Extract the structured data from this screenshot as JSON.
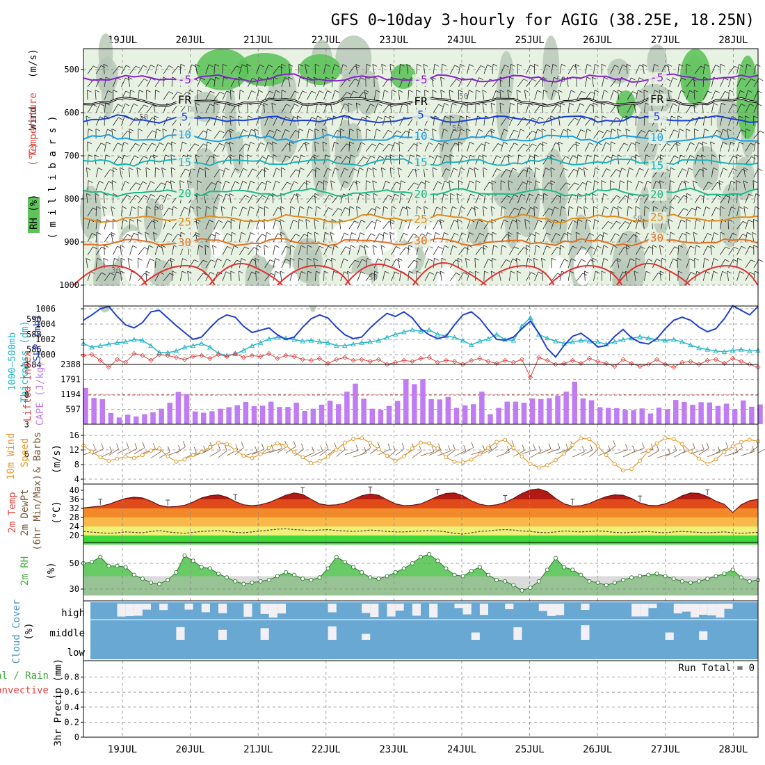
{
  "title": "GFS 0~10day 3-hourly for AGIG (38.25E, 18.25N)",
  "date_labels": [
    "19JUL",
    "20JUL",
    "21JUL",
    "22JUL",
    "23JUL",
    "24JUL",
    "25JUL",
    "26JUL",
    "27JUL",
    "28JUL"
  ],
  "colors": {
    "rh_fill_light": "#e8f2e3",
    "rh_fill_grey": "#b9c9b9",
    "rh_fill_green": "#5ec35a",
    "temp_minus5": "#8a1fd1",
    "temp_fr": "#000000",
    "temp_5": "#1a3fd6",
    "temp_10": "#1a9ee6",
    "temp_15": "#18b3b9",
    "temp_20": "#1db98a",
    "temp_25": "#e08c1a",
    "temp_30": "#e07020",
    "temp_35": "#e03030",
    "slp": "#1f3fd0",
    "thickness": "#27b6c8",
    "lifted_index": "#e0403c",
    "cape": "#c07cf2",
    "wind_speed": "#e49a2e",
    "barb": "#7a5a3a",
    "cloud_blue": "#6aa8d4",
    "cloud_white": "#f2f0f5",
    "rh2m_fill": "#4ec24a"
  },
  "panel_labels": {
    "upper": {
      "rh": "RH (%)",
      "temperature": "Temperature",
      "temp_unit": "(°C)",
      "wind": "Wind",
      "wind_unit": "(m/s)",
      "axis": "( m i l l i b a r s )"
    },
    "slp": {
      "thickness": "Thickness (dm)",
      "range": "1000–500mb",
      "slp": "SLP (mb)"
    },
    "cape": {
      "li": "Lifted Index",
      "cape": "CAPE (J/kg)"
    },
    "wind10": {
      "label1": "10m Wind",
      "label2": "Speed",
      "label3": "& Barbs",
      "unit": "(m/s)"
    },
    "temp2m": {
      "l1": "2m Temp",
      "l2": "2m DewPt",
      "l3": "(6hr Min/Max)",
      "unit": "(°C)"
    },
    "rh2m": {
      "label": "2m RH",
      "unit": "(%)"
    },
    "cloud": {
      "label": "Cloud Cover",
      "unit": "(%)",
      "levels": [
        "high",
        "middle",
        "low"
      ]
    },
    "precip": {
      "l1": "Total / Rain",
      "l2": "Convective",
      "axis": "3hr Precip (mm)",
      "run_total": "Run Total = 0"
    }
  },
  "chart_data": {
    "type": "line",
    "time_axis": {
      "start": "18 JUL 12Z",
      "steps": 80,
      "step_hours": 3
    },
    "upper_air": {
      "pressure_levels": [
        500,
        600,
        700,
        800,
        900,
        1000
      ],
      "isotherms": [
        {
          "label": "-5",
          "approx_mb": 520
        },
        {
          "label": "FR",
          "approx_mb": 575
        },
        {
          "label": "5",
          "approx_mb": 615
        },
        {
          "label": "10",
          "approx_mb": 660
        },
        {
          "label": "15",
          "approx_mb": 715
        },
        {
          "label": "20",
          "approx_mb": 785
        },
        {
          "label": "25",
          "approx_mb": 845
        },
        {
          "label": "30",
          "approx_mb": 900
        }
      ],
      "rh_labels": [
        "50",
        "50",
        "50",
        "50",
        "50",
        "50",
        "30",
        "30"
      ]
    },
    "slp": {
      "yticks": [
        1000,
        1002,
        1004,
        1006
      ],
      "values": [
        1004.5,
        1005.2,
        1006.0,
        1006.3,
        1005.0,
        1003.9,
        1003.5,
        1004.2,
        1005.6,
        1005.8,
        1004.8,
        1003.8,
        1002.9,
        1002.0,
        1002.3,
        1003.5,
        1004.6,
        1005.2,
        1004.9,
        1003.7,
        1002.9,
        1003.2,
        1003.5,
        1002.6,
        1002.0,
        1002.3,
        1003.6,
        1004.7,
        1005.2,
        1004.8,
        1003.6,
        1002.6,
        1002.1,
        1002.3,
        1003.5,
        1004.5,
        1005.4,
        1005.0,
        1005.6,
        1004.8,
        1003.4,
        1002.6,
        1002.1,
        1002.4,
        1003.9,
        1005.2,
        1005.6,
        1004.7,
        1003.3,
        1002.0,
        1001.9,
        1002.3,
        1003.4,
        1004.4,
        1002.8,
        1000.8,
        999.7,
        1001.2,
        1002.4,
        1002.8,
        1002.0,
        1001.0,
        1001.2,
        1002.4,
        1003.3,
        1002.2,
        1001.6,
        1001.4,
        1002.1,
        1003.4,
        1004.5,
        1004.9,
        1004.5,
        1003.6,
        1003.0,
        1003.4,
        1004.7,
        1006.4,
        1005.8,
        1005.2,
        1006.3
      ],
      "thickness_yticks": [
        584,
        586,
        588,
        590
      ],
      "thickness": [
        586.8,
        586.3,
        586.5,
        586.7,
        586.9,
        587.0,
        587.3,
        587.2,
        586.5,
        585.6,
        585.6,
        585.8,
        586.3,
        586.5,
        586.8,
        586.3,
        585.5,
        585.2,
        585.4,
        585.9,
        586.5,
        586.9,
        587.4,
        587.6,
        587.5,
        587.3,
        587.1,
        587.2,
        587.0,
        586.9,
        586.5,
        586.5,
        586.7,
        586.9,
        587.0,
        587.2,
        587.6,
        588.0,
        588.3,
        588.6,
        588.4,
        588.6,
        588.0,
        587.8,
        587.6,
        587.2,
        586.6,
        587.1,
        587.4,
        588.0,
        587.3,
        587.2,
        589.1,
        590.2,
        588.0,
        587.5,
        587.1,
        586.8,
        587.0,
        587.2,
        587.1,
        587.0,
        586.7,
        587.0,
        587.3,
        587.5,
        587.7,
        587.5,
        587.3,
        587.2,
        587.3,
        587.0,
        586.6,
        586.2,
        586.0,
        585.8,
        585.7,
        585.9,
        586.0,
        585.8,
        585.9
      ]
    },
    "cape": {
      "yticks_cape": [
        597,
        1194,
        1791,
        2388
      ],
      "yticks_li": [
        6,
        3,
        0,
        -3
      ],
      "values": [
        1450,
        1050,
        1000,
        450,
        270,
        380,
        310,
        400,
        480,
        620,
        860,
        1290,
        1200,
        510,
        460,
        520,
        620,
        680,
        760,
        890,
        720,
        740,
        900,
        690,
        690,
        860,
        530,
        620,
        780,
        940,
        800,
        1300,
        1620,
        1020,
        620,
        580,
        730,
        930,
        1800,
        1600,
        1800,
        1000,
        990,
        1090,
        650,
        750,
        800,
        1300,
        400,
        650,
        900,
        900,
        860,
        1030,
        1000,
        1040,
        1140,
        1300,
        1700,
        1030,
        960,
        680,
        650,
        640,
        580,
        560,
        630,
        430,
        660,
        600,
        970,
        890,
        780,
        880,
        870,
        730,
        820,
        600,
        950,
        700,
        790
      ],
      "lifted_index": [
        -4.0,
        -4.1,
        -3.5,
        -2.8,
        -3.6,
        -3.3,
        -4.2,
        -4.0,
        -3.5,
        -4.1,
        -4.0,
        -3.8,
        -3.6,
        -3.9,
        -4.0,
        -3.7,
        -4.1,
        -3.9,
        -4.2,
        -3.8,
        -4.0,
        -3.9,
        -4.2,
        -3.7,
        -4.0,
        -3.9,
        -3.6,
        -3.5,
        -3.7,
        -3.2,
        -3.6,
        -3.8,
        -3.5,
        -3.6,
        -3.4,
        -3.6,
        -3.1,
        -3.3,
        -3.5,
        -3.4,
        -3.7,
        -3.8,
        -3.3,
        -3.5,
        -3.4,
        -3.1,
        -3.5,
        -3.7,
        -3.4,
        -3.2,
        -3.5,
        -3.3,
        -3.6,
        -1.8,
        -3.8,
        -3.5,
        -3.1,
        -3.2,
        -3.5,
        -3.2,
        -3.7,
        -3.4,
        -3.2,
        -2.9,
        -3.6,
        -3.2,
        -2.9,
        -3.1,
        -3.6,
        -3.1,
        -2.8,
        -3.3,
        -3.4,
        -3.1,
        -3.5,
        -3.6,
        -3.2,
        -3.7,
        -3.4,
        -3.1,
        -2.8
      ]
    },
    "wind10": {
      "yticks": [
        4,
        8,
        12,
        16
      ],
      "values": [
        13.2,
        11.5,
        10.0,
        9.0,
        9.6,
        10.2,
        9.8,
        10.6,
        11.8,
        12.4,
        10.2,
        8.8,
        9.4,
        10.6,
        11.4,
        12.8,
        14.0,
        13.6,
        12.0,
        10.4,
        9.8,
        10.8,
        12.6,
        13.8,
        13.2,
        11.4,
        10.0,
        8.4,
        9.0,
        10.2,
        12.0,
        14.0,
        15.0,
        15.2,
        14.0,
        12.2,
        10.4,
        9.0,
        10.2,
        12.4,
        14.0,
        13.8,
        12.4,
        10.0,
        8.8,
        8.6,
        9.4,
        10.8,
        12.6,
        14.2,
        14.8,
        12.6,
        10.2,
        8.2,
        7.2,
        7.8,
        9.2,
        11.0,
        13.4,
        15.2,
        15.0,
        13.0,
        10.6,
        8.2,
        6.4,
        6.8,
        9.0,
        11.8,
        13.8,
        15.2,
        15.0,
        13.6,
        11.6,
        9.6,
        8.2,
        9.4,
        11.4,
        13.0,
        14.2,
        14.8,
        14.4
      ]
    },
    "temp2m": {
      "yticks": [
        20,
        24,
        28,
        32,
        36,
        40
      ],
      "temp": [
        32.2,
        32.6,
        33.0,
        33.8,
        35.2,
        36.4,
        37.0,
        36.6,
        35.2,
        33.4,
        32.6,
        32.8,
        33.4,
        34.8,
        36.6,
        37.6,
        38.0,
        37.0,
        35.0,
        33.6,
        33.2,
        33.6,
        34.6,
        36.2,
        37.8,
        38.8,
        38.2,
        36.0,
        34.0,
        33.4,
        33.6,
        34.4,
        36.0,
        37.6,
        38.4,
        37.8,
        35.8,
        34.0,
        33.2,
        33.4,
        34.0,
        35.6,
        37.4,
        38.6,
        38.8,
        37.6,
        35.4,
        33.8,
        33.2,
        33.6,
        34.6,
        36.4,
        38.6,
        40.2,
        40.6,
        39.4,
        36.4,
        34.0,
        33.0,
        33.2,
        34.2,
        35.8,
        37.2,
        38.0,
        37.8,
        36.4,
        34.4,
        33.4,
        33.2,
        34.0,
        35.6,
        37.6,
        38.8,
        38.6,
        37.2,
        35.2,
        33.8,
        30.2,
        33.6,
        35.4,
        36.0
      ],
      "dewpt": [
        21.8,
        21.5,
        21.2,
        21.0,
        21.2,
        21.6,
        21.4,
        21.2,
        21.8,
        22.2,
        21.6,
        21.2,
        21.0,
        21.4,
        21.8,
        22.0,
        22.2,
        21.8,
        21.4,
        21.2,
        21.6,
        22.0,
        22.4,
        22.8,
        23.0,
        22.6,
        22.4,
        22.2,
        22.4,
        22.6,
        22.2,
        22.0,
        21.8,
        22.0,
        22.4,
        22.2,
        21.8,
        21.6,
        21.6,
        21.8,
        22.0,
        22.2,
        22.0,
        21.6,
        21.0,
        20.6,
        21.2,
        21.8,
        22.0,
        22.4,
        22.6,
        22.4,
        22.0,
        21.8,
        21.4,
        21.2,
        21.6,
        22.0,
        21.8,
        21.6,
        21.8,
        22.0,
        21.8,
        21.4,
        21.2,
        21.4,
        21.6,
        21.8,
        21.4,
        21.2,
        21.6,
        21.8,
        21.6,
        21.4,
        21.2,
        21.4,
        21.6,
        21.2,
        21.0,
        21.2,
        21.4
      ]
    },
    "rh2m": {
      "yticks": [
        30,
        50
      ],
      "values": [
        50,
        51,
        55,
        48,
        48,
        47,
        41,
        38,
        35,
        34,
        37,
        43,
        56,
        52,
        47,
        46,
        42,
        39,
        36,
        34,
        35,
        36,
        37,
        40,
        43,
        41,
        38,
        37,
        39,
        46,
        55,
        51,
        47,
        43,
        39,
        38,
        40,
        43,
        46,
        50,
        55,
        57,
        52,
        46,
        41,
        40,
        44,
        47,
        41,
        37,
        36,
        33,
        29,
        31,
        36,
        45,
        54,
        47,
        45,
        41,
        36,
        35,
        33,
        35,
        37,
        39,
        40,
        41,
        42,
        40,
        38,
        36,
        35,
        36,
        38,
        40,
        42,
        45,
        39,
        36,
        37
      ]
    },
    "cloud": {
      "levels": [
        "high",
        "middle",
        "low"
      ]
    },
    "precip": {
      "yticks": [
        0,
        0.2,
        0.4,
        0.6,
        0.8
      ],
      "values": [],
      "run_total": 0
    }
  }
}
